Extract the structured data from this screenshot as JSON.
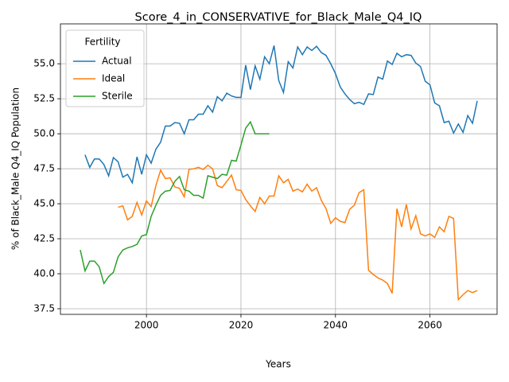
{
  "chart_data": {
    "type": "line",
    "title": "Score_4_in_CONSERVATIVE_for_Black_Male_Q4_IQ",
    "x_label": "Years",
    "y_label": "% of Black_Male Q4_IQ Population",
    "legend_title": "Fertility",
    "legend_position": "upper left",
    "grid": true,
    "xlim": [
      1981.8,
      2074.2
    ],
    "ylim": [
      37.1,
      57.85
    ],
    "xticks": [
      2000,
      2020,
      2040,
      2060
    ],
    "yticks": [
      37.5,
      {
        "value": 40,
        "label": "40.0"
      },
      42.5,
      {
        "value": 45,
        "label": "45.0"
      },
      47.5,
      {
        "value": 50,
        "label": "50.0"
      },
      52.5,
      {
        "value": 55,
        "label": "55.0"
      }
    ],
    "x": [
      1986,
      1987,
      1988,
      1989,
      1990,
      1991,
      1992,
      1993,
      1994,
      1995,
      1996,
      1997,
      1998,
      1999,
      2000,
      2001,
      2002,
      2003,
      2004,
      2005,
      2006,
      2007,
      2008,
      2009,
      2010,
      2011,
      2012,
      2013,
      2014,
      2015,
      2016,
      2017,
      2018,
      2019,
      2020,
      2021,
      2022,
      2023,
      2024,
      2025,
      2026,
      2027,
      2028,
      2029,
      2030,
      2031,
      2032,
      2033,
      2034,
      2035,
      2036,
      2037,
      2038,
      2039,
      2040,
      2041,
      2042,
      2043,
      2044,
      2045,
      2046,
      2047,
      2048,
      2049,
      2050,
      2051,
      2052,
      2053,
      2054,
      2055,
      2056,
      2057,
      2058,
      2059,
      2060,
      2061,
      2062,
      2063,
      2064,
      2065,
      2066,
      2067,
      2068,
      2069,
      2070
    ],
    "series": [
      {
        "name": "Actual",
        "color": "#1f77b4",
        "values": [
          null,
          48.5,
          47.6,
          48.2,
          48.2,
          47.8,
          47.0,
          48.3,
          48.0,
          46.9,
          47.1,
          46.5,
          48.35,
          47.1,
          48.5,
          47.9,
          48.9,
          49.4,
          50.55,
          50.55,
          50.8,
          50.75,
          50.0,
          51.0,
          51.0,
          51.4,
          51.4,
          52.0,
          51.55,
          52.65,
          52.35,
          52.9,
          52.7,
          52.6,
          52.6,
          54.9,
          53.15,
          54.85,
          53.9,
          55.5,
          55.0,
          56.3,
          53.8,
          52.95,
          55.15,
          54.7,
          56.2,
          55.65,
          56.2,
          55.95,
          56.25,
          55.8,
          55.6,
          55.0,
          54.3,
          53.35,
          52.85,
          52.45,
          52.15,
          52.25,
          52.1,
          52.85,
          52.8,
          54.05,
          53.9,
          55.2,
          54.95,
          55.75,
          55.5,
          55.65,
          55.6,
          55.05,
          54.8,
          53.75,
          53.5,
          52.2,
          52.0,
          50.8,
          50.9,
          50.05,
          50.7,
          50.1,
          51.3,
          50.75,
          52.35
        ]
      },
      {
        "name": "Ideal",
        "color": "#ff7f0e",
        "values": [
          null,
          null,
          null,
          null,
          null,
          null,
          null,
          null,
          44.75,
          44.85,
          43.85,
          44.1,
          45.1,
          44.2,
          45.2,
          44.8,
          46.3,
          47.4,
          46.8,
          46.85,
          46.2,
          46.1,
          45.5,
          47.45,
          47.5,
          47.6,
          47.45,
          47.75,
          47.5,
          46.3,
          46.15,
          46.6,
          47.05,
          46.0,
          45.95,
          45.3,
          44.85,
          44.45,
          45.45,
          45.0,
          45.55,
          45.55,
          47.0,
          46.5,
          46.75,
          45.9,
          46.05,
          45.85,
          46.4,
          45.9,
          46.15,
          45.25,
          44.65,
          43.6,
          44.0,
          43.75,
          43.65,
          44.6,
          44.9,
          45.8,
          46.0,
          40.25,
          39.95,
          39.7,
          39.55,
          39.3,
          38.6,
          44.65,
          43.35,
          44.95,
          43.2,
          44.15,
          42.85,
          42.7,
          42.85,
          42.6,
          43.35,
          43.0,
          44.1,
          43.95,
          38.15,
          38.5,
          38.8,
          38.65,
          38.8
        ]
      },
      {
        "name": "Sterile",
        "color": "#2ca02c",
        "values": [
          41.7,
          40.2,
          40.9,
          40.9,
          40.5,
          39.3,
          39.8,
          40.1,
          41.2,
          41.7,
          41.85,
          41.95,
          42.1,
          42.7,
          42.8,
          44.1,
          44.9,
          45.6,
          45.9,
          45.95,
          46.6,
          46.95,
          46.0,
          45.9,
          45.6,
          45.6,
          45.4,
          47.0,
          46.9,
          46.8,
          47.1,
          47.05,
          48.1,
          48.05,
          49.2,
          50.4,
          50.85,
          50.0,
          50.0,
          50.0,
          50.0,
          null,
          null,
          null,
          null,
          null,
          null,
          null,
          null,
          null,
          null,
          null,
          null,
          null,
          null,
          null,
          null,
          null,
          null,
          null,
          null,
          null,
          null,
          null,
          null,
          null,
          null,
          null,
          null,
          null,
          null,
          null,
          null,
          null,
          null,
          null,
          null,
          null,
          null,
          null,
          null,
          null,
          null,
          null,
          null
        ]
      }
    ]
  }
}
